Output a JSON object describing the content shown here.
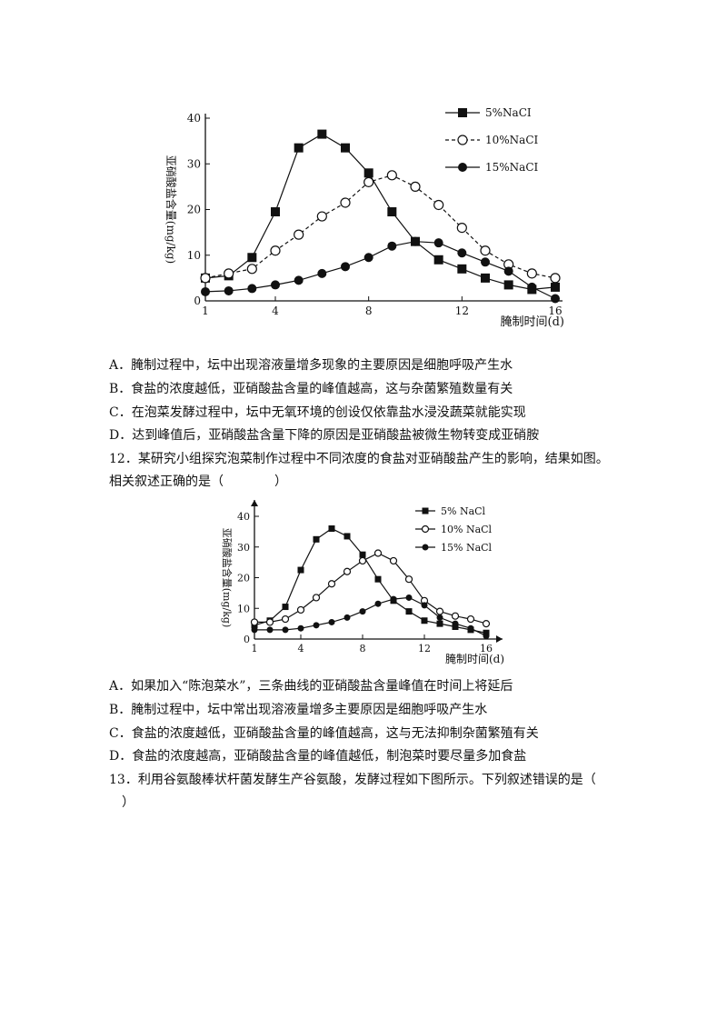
{
  "chart_data": [
    {
      "type": "line",
      "title": "",
      "ylabel": "亚硝酸盐含量(mg/kg)",
      "xlabel": "腌制时间(d)",
      "xlim": [
        1,
        16
      ],
      "ylim": [
        0,
        40
      ],
      "xticks": [
        "1",
        "4",
        "8",
        "12",
        "16"
      ],
      "yticks": [
        "0",
        "10",
        "20",
        "30",
        "40"
      ],
      "legend_position": "top-right",
      "series": [
        {
          "name": "5%NaCI",
          "marker": "square",
          "dashed": false,
          "x": [
            1,
            2,
            3,
            4,
            5,
            6,
            7,
            8,
            9,
            10,
            11,
            12,
            13,
            14,
            15,
            16
          ],
          "y": [
            5,
            5.5,
            9.5,
            19.5,
            33.5,
            36.5,
            33.5,
            28,
            19.5,
            13,
            9,
            7,
            5,
            3.5,
            2.5,
            3
          ]
        },
        {
          "name": "10%NaCI",
          "marker": "open-circle",
          "dashed": true,
          "x": [
            1,
            2,
            3,
            4,
            5,
            6,
            7,
            8,
            9,
            10,
            11,
            12,
            13,
            14,
            15,
            16
          ],
          "y": [
            5,
            6,
            7,
            11,
            14.5,
            18.5,
            21.5,
            26,
            27.5,
            25,
            21,
            16,
            11,
            8,
            6,
            5
          ]
        },
        {
          "name": "15%NaCI",
          "marker": "filled-circle",
          "dashed": false,
          "x": [
            1,
            2,
            3,
            4,
            5,
            6,
            7,
            8,
            9,
            10,
            11,
            12,
            13,
            14,
            15,
            16
          ],
          "y": [
            2,
            2.2,
            2.7,
            3.5,
            4.5,
            6,
            7.5,
            9.5,
            12,
            13,
            12.7,
            10.5,
            8.5,
            6.5,
            3,
            0.5
          ]
        }
      ]
    },
    {
      "type": "line",
      "title": "",
      "ylabel": "亚硝酸盐含量(mg/kg)",
      "xlabel": "腌制时间(d)",
      "xlim": [
        1,
        16
      ],
      "ylim": [
        0,
        40
      ],
      "xticks": [
        "1",
        "4",
        "8",
        "12",
        "16"
      ],
      "yticks": [
        "0",
        "10",
        "20",
        "30",
        "40"
      ],
      "legend_position": "top-right",
      "series": [
        {
          "name": "5% NaCl",
          "marker": "square",
          "dashed": false,
          "x": [
            1,
            2,
            3,
            4,
            5,
            6,
            7,
            8,
            9,
            10,
            11,
            12,
            13,
            14,
            15,
            16
          ],
          "y": [
            4.5,
            6,
            10.5,
            22.5,
            32.5,
            36,
            33.5,
            27.5,
            19.5,
            12.5,
            9,
            6,
            5,
            4,
            3,
            2
          ]
        },
        {
          "name": "10% NaCl",
          "marker": "open-circle",
          "dashed": false,
          "x": [
            1,
            2,
            3,
            4,
            5,
            6,
            7,
            8,
            9,
            10,
            11,
            12,
            13,
            14,
            15,
            16
          ],
          "y": [
            5.5,
            5.5,
            6.5,
            9.5,
            13.5,
            18,
            22,
            25.5,
            28,
            25.5,
            19.5,
            12.5,
            9,
            7.5,
            6.5,
            5
          ]
        },
        {
          "name": "15% NaCl",
          "marker": "filled-circle",
          "dashed": false,
          "x": [
            1,
            2,
            3,
            4,
            5,
            6,
            7,
            8,
            9,
            10,
            11,
            12,
            13,
            14,
            15,
            16
          ],
          "y": [
            3,
            3,
            3,
            3.5,
            4.5,
            5.5,
            7,
            9,
            11.5,
            13,
            13.5,
            11,
            7,
            5,
            3.5,
            1
          ]
        }
      ]
    }
  ],
  "text_lines": [
    "A．腌制过程中，坛中出现溶液量增多现象的主要原因是细胞呼吸产生水",
    "B．食盐的浓度越低，亚硝酸盐含量的峰值越高，这与杂菌繁殖数量有关",
    "C．在泡菜发酵过程中，坛中无氧环境的创设仅依靠盐水浸没蔬菜就能实现",
    "D．达到峰值后，亚硝酸盐含量下降的原因是亚硝酸盐被微生物转变成亚硝胺",
    "12．某研究小组探究泡菜制作过程中不同浓度的食盐对亚硝酸盐产生的影响，结果如图。",
    "相关叙述正确的是（　　　　）",
    "A．如果加入“陈泡菜水”，三条曲线的亚硝酸盐含量峰值在时间上将延后",
    "B．腌制过程中，坛中常出现溶液量增多主要原因是细胞呼吸产生水",
    "C．食盐的浓度越低，亚硝酸盐含量的峰值越高，这与无法抑制杂菌繁殖有关",
    "D．食盐的浓度越高，亚硝酸盐含量的峰值越低，制泡菜时要尽量多加食盐",
    "13．利用谷氨酸棒状杆菌发酵生产谷氨酸，发酵过程如下图所示。下列叙述错误的是（",
    "　）"
  ]
}
